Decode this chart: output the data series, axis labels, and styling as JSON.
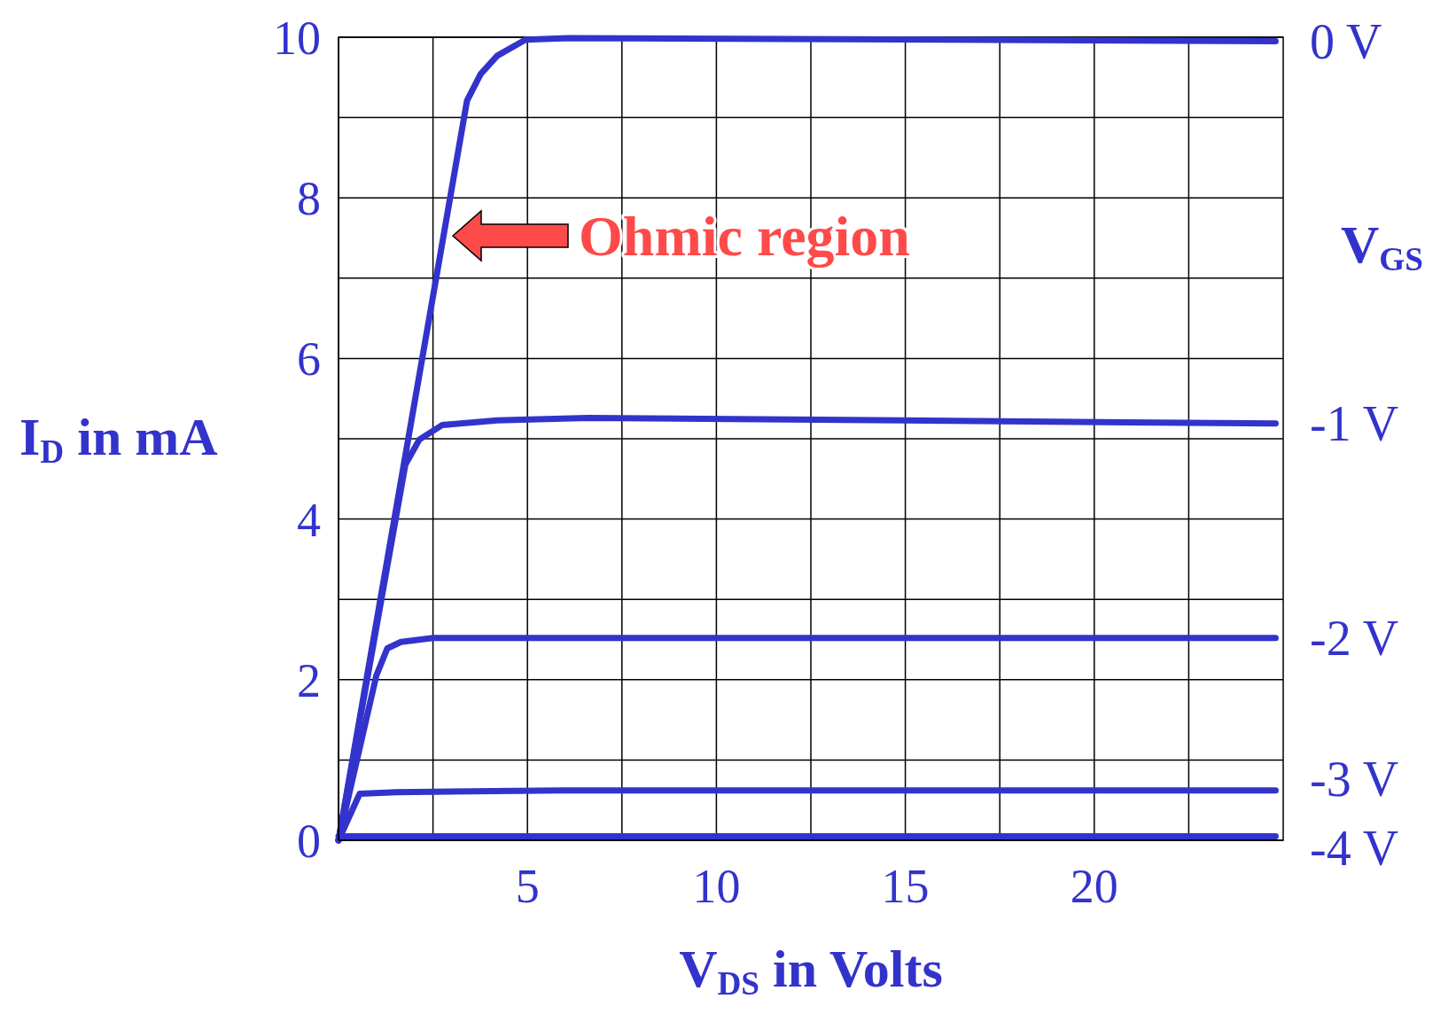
{
  "chart_data": {
    "type": "line",
    "xlabel": "V$_{DS}$ in Volts",
    "ylabel": "I$_{D}$ in mA",
    "legend_title": "V$_{GS}$",
    "legend": "right",
    "grid": true,
    "xlim": [
      0,
      25
    ],
    "ylim": [
      0,
      10
    ],
    "xticks": [
      {
        "value": 2.5,
        "label": null
      },
      5,
      {
        "value": 7.5,
        "label": null
      },
      10,
      {
        "value": 12.5,
        "label": null
      },
      15,
      {
        "value": 17.5,
        "label": null
      },
      20,
      {
        "value": 22.5,
        "label": null
      }
    ],
    "yticks": [
      0,
      {
        "value": 1,
        "label": null
      },
      2,
      {
        "value": 3,
        "label": null
      },
      4,
      {
        "value": 5,
        "label": null
      },
      6,
      {
        "value": 7,
        "label": null
      },
      8,
      {
        "value": 9,
        "label": null
      },
      10
    ],
    "series": [
      {
        "name": "0 V",
        "color": "#3333cc",
        "x": [
          0,
          3.4,
          3.76,
          4.2,
          4.95,
          6.1,
          24.8
        ],
        "values": [
          0,
          9.21,
          9.54,
          9.77,
          9.97,
          9.99,
          9.95
        ]
      },
      {
        "name": "-1 V",
        "color": "#3333cc",
        "x": [
          0,
          1.77,
          2.14,
          2.74,
          4.2,
          6.6,
          24.8
        ],
        "values": [
          0,
          4.68,
          4.99,
          5.17,
          5.23,
          5.26,
          5.19
        ]
      },
      {
        "name": "-2 V",
        "color": "#3333cc",
        "x": [
          0,
          1.0,
          1.29,
          1.65,
          2.5,
          24.8
        ],
        "values": [
          0,
          2.05,
          2.39,
          2.47,
          2.52,
          2.52
        ]
      },
      {
        "name": "-3 V",
        "color": "#3333cc",
        "x": [
          0,
          0.56,
          1.53,
          5.9,
          24.8
        ],
        "values": [
          0,
          0.58,
          0.6,
          0.62,
          0.62
        ]
      },
      {
        "name": "-4 V",
        "color": "#3333cc",
        "x": [
          0,
          24.8
        ],
        "values": [
          0.05,
          0.05
        ]
      }
    ],
    "annotations": [
      "Ohmic region"
    ]
  }
}
